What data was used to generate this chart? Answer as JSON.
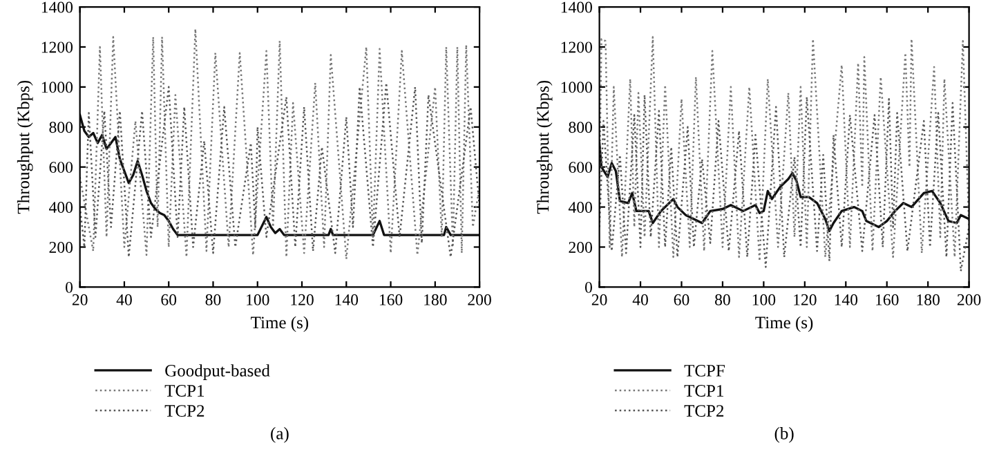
{
  "chart_data": [
    {
      "type": "line",
      "xlabel": "Time (s)",
      "ylabel": "Throughput (Kbps)",
      "xlim": [
        20,
        200
      ],
      "ylim": [
        0,
        1400
      ],
      "xticks": [
        20,
        40,
        60,
        80,
        100,
        120,
        140,
        160,
        180,
        200
      ],
      "yticks": [
        0,
        200,
        400,
        600,
        800,
        1000,
        1200,
        1400
      ],
      "legend": "bottom",
      "annotations": [
        "(a)"
      ],
      "series": [
        {
          "name": "Goodput-based",
          "color": "#111111",
          "line_style": "solid",
          "x": [
            20,
            22,
            24,
            26,
            28,
            30,
            32,
            34,
            36,
            38,
            40,
            42,
            44,
            46,
            48,
            50,
            52,
            54,
            56,
            58,
            60,
            62,
            64,
            100,
            104,
            106,
            108,
            110,
            112,
            132,
            133,
            134,
            152,
            155,
            157,
            184,
            185,
            187,
            200
          ],
          "values": [
            860,
            780,
            750,
            770,
            720,
            760,
            690,
            720,
            750,
            640,
            580,
            520,
            560,
            630,
            560,
            480,
            420,
            390,
            370,
            360,
            330,
            290,
            260,
            260,
            350,
            300,
            270,
            290,
            260,
            260,
            290,
            260,
            260,
            330,
            260,
            260,
            300,
            260,
            260
          ]
        },
        {
          "name": "TCP1",
          "color": "#777777",
          "line_style": "dotted",
          "x": [
            20,
            24,
            26,
            29,
            32,
            35,
            40,
            45,
            50,
            53,
            55,
            57,
            60,
            63,
            68,
            72,
            77,
            81,
            87,
            92,
            98,
            104,
            107,
            110,
            113,
            116,
            121,
            126,
            130,
            133,
            140,
            149,
            152,
            155,
            160,
            165,
            172,
            180,
            183,
            185,
            188,
            190,
            192,
            194,
            197,
            200
          ],
          "values": [
            550,
            300,
            180,
            1200,
            250,
            1250,
            200,
            830,
            160,
            1250,
            300,
            1250,
            200,
            960,
            150,
            1290,
            180,
            1170,
            200,
            1170,
            160,
            1180,
            300,
            1230,
            150,
            920,
            170,
            1020,
            200,
            1160,
            140,
            1200,
            250,
            1190,
            170,
            1180,
            160,
            1000,
            250,
            1200,
            200,
            1200,
            170,
            1210,
            300,
            500
          ]
        },
        {
          "name": "TCP2",
          "color": "#555555",
          "line_style": "dotted",
          "x": [
            20,
            22,
            24,
            27,
            31,
            34,
            38,
            42,
            48,
            52,
            60,
            64,
            67,
            71,
            76,
            80,
            85,
            90,
            97,
            99,
            100,
            104,
            113,
            117,
            121,
            125,
            129,
            135,
            140,
            143,
            146,
            152,
            158,
            164,
            171,
            174,
            177,
            187,
            196,
            200
          ],
          "values": [
            400,
            200,
            870,
            250,
            880,
            300,
            880,
            150,
            880,
            250,
            1000,
            250,
            900,
            200,
            730,
            170,
            900,
            200,
            720,
            300,
            800,
            250,
            950,
            200,
            900,
            180,
            700,
            170,
            850,
            300,
            1000,
            200,
            1020,
            250,
            1000,
            220,
            960,
            150,
            900,
            400
          ]
        }
      ]
    },
    {
      "type": "line",
      "xlabel": "Time (s)",
      "ylabel": "Throughput (Kbps)",
      "xlim": [
        20,
        200
      ],
      "ylim": [
        0,
        1400
      ],
      "xticks": [
        20,
        40,
        60,
        80,
        100,
        120,
        140,
        160,
        180,
        200
      ],
      "yticks": [
        0,
        200,
        400,
        600,
        800,
        1000,
        1200,
        1400
      ],
      "legend": "bottom",
      "annotations": [
        "(b)"
      ],
      "series": [
        {
          "name": "TCPF",
          "color": "#111111",
          "line_style": "solid",
          "x": [
            20,
            21,
            24,
            26,
            28,
            30,
            34,
            36,
            38,
            44,
            46,
            50,
            56,
            58,
            62,
            66,
            70,
            74,
            80,
            84,
            90,
            96,
            98,
            100,
            102,
            104,
            108,
            112,
            114,
            116,
            118,
            122,
            126,
            130,
            132,
            134,
            138,
            144,
            148,
            150,
            156,
            160,
            164,
            168,
            172,
            178,
            182,
            186,
            190,
            194,
            196,
            200
          ],
          "values": [
            720,
            600,
            550,
            620,
            580,
            430,
            420,
            470,
            380,
            380,
            320,
            380,
            440,
            400,
            360,
            340,
            320,
            380,
            390,
            410,
            380,
            410,
            370,
            380,
            480,
            440,
            500,
            540,
            570,
            530,
            450,
            450,
            420,
            340,
            280,
            320,
            380,
            400,
            380,
            330,
            300,
            330,
            380,
            420,
            400,
            470,
            480,
            420,
            330,
            320,
            360,
            340
          ]
        },
        {
          "name": "TCP1",
          "color": "#777777",
          "line_style": "dotted",
          "x": [
            20,
            21,
            23,
            25,
            27,
            31,
            35,
            37,
            39,
            42,
            46,
            49,
            52,
            56,
            60,
            64,
            67,
            71,
            75,
            80,
            84,
            88,
            93,
            98,
            102,
            107,
            112,
            115,
            118,
            121,
            124,
            130,
            138,
            142,
            146,
            148,
            149,
            153,
            157,
            163,
            169,
            171,
            172,
            177,
            183,
            186,
            188,
            193,
            197,
            200
          ],
          "values": [
            500,
            1240,
            1230,
            200,
            1000,
            150,
            1040,
            300,
            970,
            250,
            1250,
            200,
            1010,
            150,
            940,
            200,
            1050,
            180,
            1180,
            200,
            1000,
            150,
            1000,
            130,
            1040,
            200,
            970,
            250,
            1000,
            200,
            1240,
            150,
            1110,
            200,
            1120,
            500,
            1150,
            180,
            1050,
            150,
            1170,
            600,
            1240,
            170,
            1100,
            250,
            1040,
            150,
            1230,
            300
          ]
        },
        {
          "name": "TCP2",
          "color": "#555555",
          "line_style": "dotted",
          "x": [
            20,
            22,
            26,
            30,
            33,
            37,
            40,
            42,
            45,
            49,
            52,
            55,
            58,
            63,
            66,
            70,
            74,
            78,
            83,
            88,
            92,
            96,
            101,
            106,
            110,
            115,
            118,
            121,
            126,
            129,
            132,
            134,
            138,
            142,
            148,
            154,
            158,
            161,
            163,
            165,
            170,
            178,
            181,
            185,
            189,
            192,
            196,
            200
          ],
          "values": [
            300,
            830,
            180,
            660,
            170,
            860,
            200,
            960,
            250,
            880,
            200,
            700,
            150,
            800,
            200,
            640,
            220,
            830,
            180,
            780,
            150,
            760,
            100,
            900,
            150,
            650,
            200,
            950,
            180,
            660,
            130,
            760,
            200,
            860,
            180,
            860,
            200,
            940,
            300,
            870,
            180,
            830,
            200,
            870,
            150,
            920,
            80,
            300
          ]
        }
      ]
    }
  ]
}
